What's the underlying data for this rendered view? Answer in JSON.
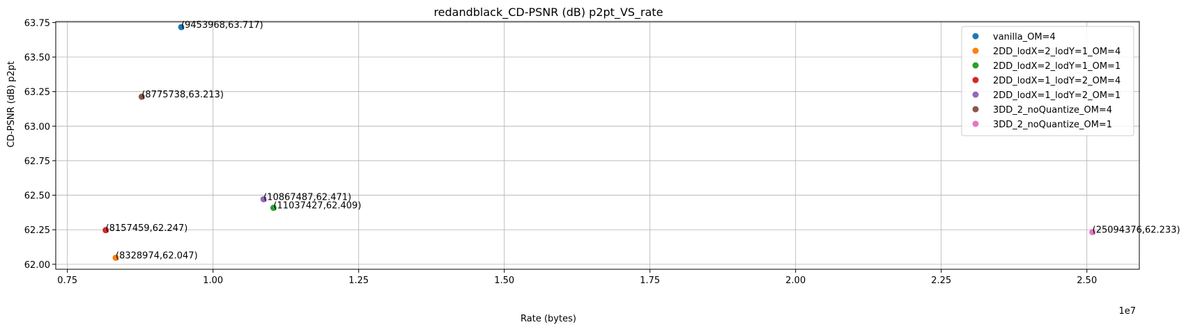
{
  "chart_data": {
    "type": "scatter",
    "title": "redandblack_CD-PSNR (dB) p2pt_VS_rate",
    "xlabel": "Rate (bytes)",
    "ylabel": "CD-PSNR (dB) p2pt",
    "x_offset_label": "1e7",
    "xlim": [
      7300000,
      25900000
    ],
    "ylim": [
      61.964,
      63.757
    ],
    "x_ticks": [
      7500000,
      10000000,
      12500000,
      15000000,
      17500000,
      20000000,
      22500000,
      25000000
    ],
    "x_tick_labels": [
      "0.75",
      "1.00",
      "1.25",
      "1.50",
      "1.75",
      "2.00",
      "2.25",
      "2.50"
    ],
    "y_ticks": [
      62.0,
      62.25,
      62.5,
      62.75,
      63.0,
      63.25,
      63.5,
      63.75
    ],
    "y_tick_labels": [
      "62.00",
      "62.25",
      "62.50",
      "62.75",
      "63.00",
      "63.25",
      "63.50",
      "63.75"
    ],
    "grid": true,
    "legend_position": "top-right",
    "series": [
      {
        "name": "vanilla_OM=4",
        "color": "#1f77b4",
        "x": [
          9453968
        ],
        "y": [
          63.717
        ],
        "labels": [
          "(9453968,63.717)"
        ]
      },
      {
        "name": "2DD_lodX=2_lodY=1_OM=4",
        "color": "#ff7f0e",
        "x": [
          8328974
        ],
        "y": [
          62.047
        ],
        "labels": [
          "(8328974,62.047)"
        ]
      },
      {
        "name": "2DD_lodX=2_lodY=1_OM=1",
        "color": "#2ca02c",
        "x": [
          11037427
        ],
        "y": [
          62.409
        ],
        "labels": [
          "(11037427,62.409)"
        ]
      },
      {
        "name": "2DD_lodX=1_lodY=2_OM=4",
        "color": "#d62728",
        "x": [
          8157459
        ],
        "y": [
          62.247
        ],
        "labels": [
          "(8157459,62.247)"
        ]
      },
      {
        "name": "2DD_lodX=1_lodY=2_OM=1",
        "color": "#9467bd",
        "x": [
          10867487
        ],
        "y": [
          62.471
        ],
        "labels": [
          "(10867487,62.471)"
        ]
      },
      {
        "name": "3DD_2_noQuantize_OM=4",
        "color": "#8c564b",
        "x": [
          8775738
        ],
        "y": [
          63.213
        ],
        "labels": [
          "(8775738,63.213)"
        ]
      },
      {
        "name": "3DD_2_noQuantize_OM=1",
        "color": "#e377c2",
        "x": [
          25094376
        ],
        "y": [
          62.233
        ],
        "labels": [
          "(25094376,62.233)"
        ]
      }
    ]
  }
}
